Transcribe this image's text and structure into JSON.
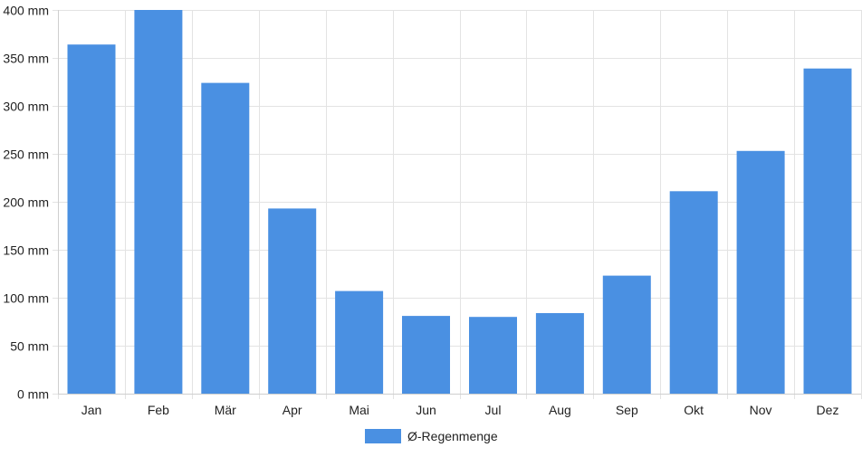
{
  "chart_data": {
    "type": "bar",
    "categories": [
      "Jan",
      "Feb",
      "Mär",
      "Apr",
      "Mai",
      "Jun",
      "Jul",
      "Aug",
      "Sep",
      "Okt",
      "Nov",
      "Dez"
    ],
    "series": [
      {
        "name": "Ø-Regenmenge",
        "values": [
          364,
          400,
          324,
          193,
          107,
          81,
          80,
          84,
          123,
          211,
          253,
          339
        ],
        "color": "#4a90e2"
      }
    ],
    "y_ticks": [
      0,
      50,
      100,
      150,
      200,
      250,
      300,
      350,
      400
    ],
    "y_unit": "mm",
    "ylim": [
      0,
      400
    ],
    "grid": true,
    "legend_position": "bottom-center"
  }
}
